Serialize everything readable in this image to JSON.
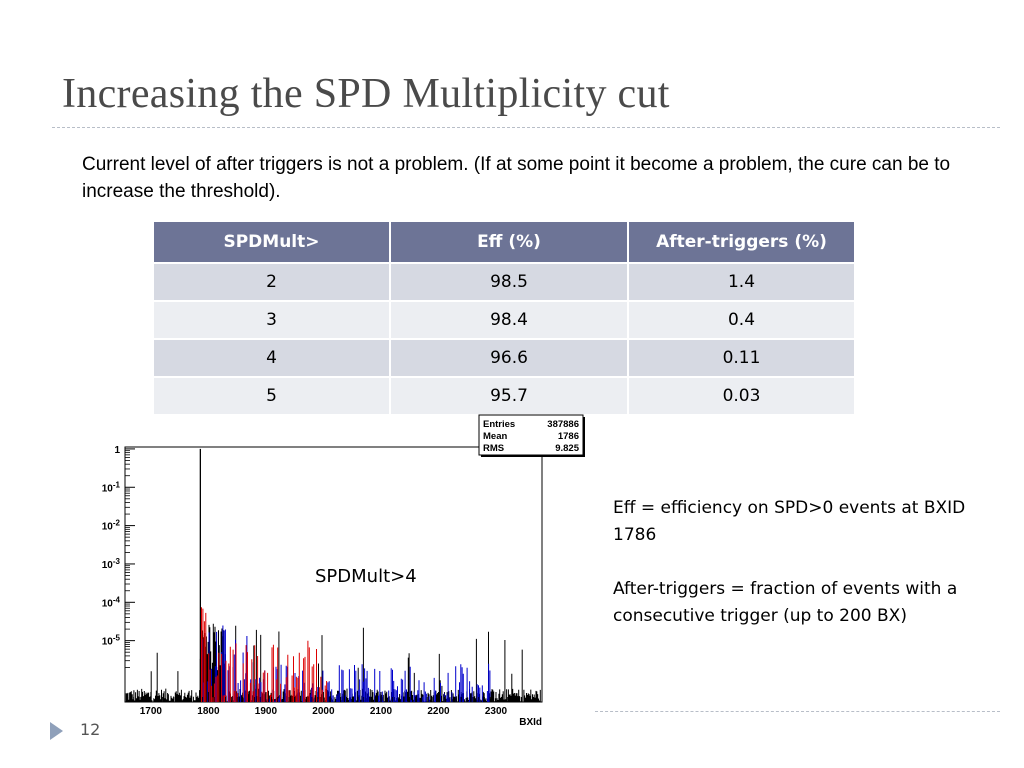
{
  "slide": {
    "title": "Increasing the SPD Multiplicity cut",
    "intro": "Current level of after triggers is not a problem. (If at some point it become a problem, the cure can be to increase the threshold).",
    "page_number": "12"
  },
  "table": {
    "headers": [
      "SPDMult>",
      "Eff (%)",
      "After-triggers (%)"
    ],
    "rows": [
      [
        "2",
        "98.5",
        "1.4"
      ],
      [
        "3",
        "98.4",
        "0.4"
      ],
      [
        "4",
        "96.6",
        "0.11"
      ],
      [
        "5",
        "95.7",
        "0.03"
      ]
    ]
  },
  "notes": {
    "eff": "Eff = efficiency on SPD>0 events at BXID 1786",
    "after": "After-triggers = fraction of events with a consecutive trigger (up to 200 BX)"
  },
  "chart_data": {
    "type": "histogram",
    "annotation": "SPDMult>4",
    "xlabel": "BXId",
    "ylabel": "",
    "xlim": [
      1655,
      2380
    ],
    "x_ticks": [
      1700,
      1800,
      1900,
      2000,
      2100,
      2200,
      2300
    ],
    "ylim_log10": [
      -6.6,
      0.05
    ],
    "y_ticks": [
      "1",
      "10^-1",
      "10^-2",
      "10^-3",
      "10^-4",
      "10^-5"
    ],
    "log_y": true,
    "grid": false,
    "stats": {
      "Entries": "387886",
      "Mean": "1786",
      "RMS": "9.825"
    },
    "series": [
      {
        "color": "#000000",
        "peak_x": 1786,
        "peak_y": 1
      },
      {
        "color": "#0000cc"
      },
      {
        "color": "#dd0000"
      }
    ]
  },
  "colors": {
    "table_header": "#6d7496",
    "row_odd": "#d6d9e2",
    "row_even": "#eceef2",
    "title": "#4a4a4a"
  }
}
